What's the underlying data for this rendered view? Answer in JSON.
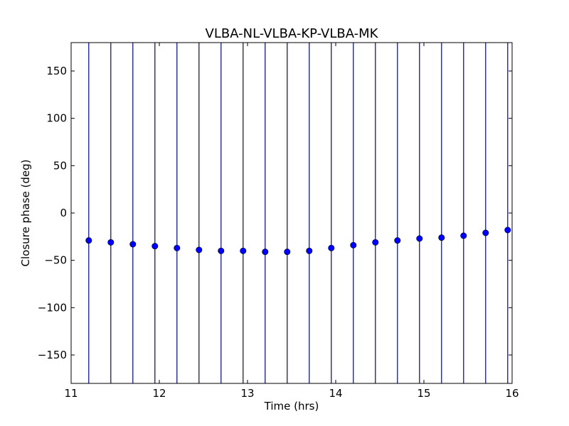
{
  "chart_data": {
    "type": "scatter",
    "title": "VLBA-NL-VLBA-KP-VLBA-MK",
    "xlabel": "Time (hrs)",
    "ylabel": "Closure phase (deg)",
    "xlim": [
      11,
      16
    ],
    "ylim": [
      -180,
      180
    ],
    "xticks": [
      11,
      12,
      13,
      14,
      15,
      16
    ],
    "xtick_labels": [
      "11",
      "12",
      "13",
      "14",
      "15",
      "16"
    ],
    "yticks": [
      -150,
      -100,
      -50,
      0,
      50,
      100,
      150
    ],
    "ytick_labels": [
      "−150",
      "−100",
      "−50",
      "0",
      "50",
      "100",
      "150"
    ],
    "grid": false,
    "legend": "none",
    "marker_color": "#0000ff",
    "errorbar_color": "#00008b",
    "series": [
      {
        "x": [
          11.2,
          11.45,
          11.7,
          11.95,
          12.2,
          12.45,
          12.7,
          12.95,
          13.2,
          13.45,
          13.7,
          13.95,
          14.2,
          14.45,
          14.7,
          14.95,
          15.2,
          15.45,
          15.7,
          15.95
        ],
        "y": [
          -29,
          -31,
          -33,
          -35,
          -37,
          -39,
          -40,
          -40,
          -41,
          -41,
          -40,
          -37,
          -34,
          -31,
          -29,
          -27,
          -26,
          -24,
          -21,
          -18
        ],
        "y_error_span": [
          -180,
          180
        ]
      }
    ]
  }
}
